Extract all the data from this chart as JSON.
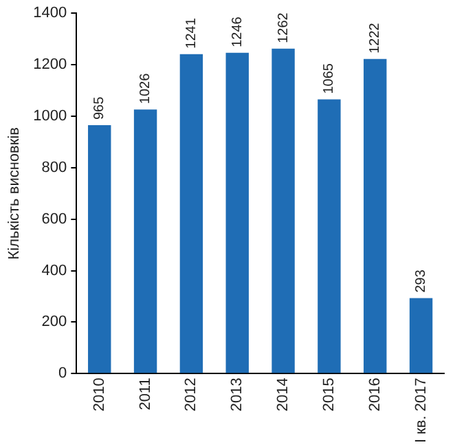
{
  "chart_data": {
    "type": "bar",
    "ylabel": "Кількість висновків",
    "categories": [
      "2010",
      "2011",
      "2012",
      "2013",
      "2014",
      "2015",
      "2016",
      "І кв. 2017"
    ],
    "values": [
      965,
      1026,
      1241,
      1246,
      1262,
      1065,
      1222,
      293
    ],
    "color": "#1f6db5",
    "ylim": [
      0,
      1400
    ],
    "yticks": [
      0,
      200,
      400,
      600,
      800,
      1000,
      1200,
      1400
    ],
    "grid": false,
    "data_labels": true
  }
}
